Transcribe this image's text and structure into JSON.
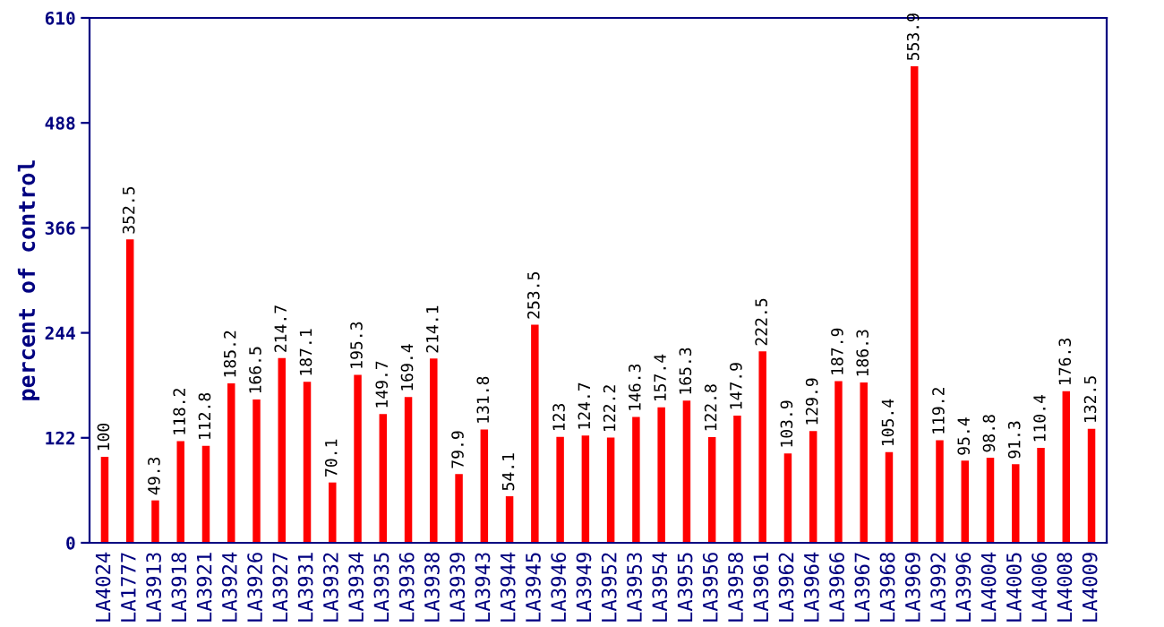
{
  "chart_data": {
    "type": "bar",
    "ylabel": "percent of control",
    "categories": [
      "LA4024",
      "LA1777",
      "LA3913",
      "LA3918",
      "LA3921",
      "LA3924",
      "LA3926",
      "LA3927",
      "LA3931",
      "LA3932",
      "LA3934",
      "LA3935",
      "LA3936",
      "LA3938",
      "LA3939",
      "LA3943",
      "LA3944",
      "LA3945",
      "LA3946",
      "LA3949",
      "LA3952",
      "LA3953",
      "LA3954",
      "LA3955",
      "LA3956",
      "LA3958",
      "LA3961",
      "LA3962",
      "LA3964",
      "LA3966",
      "LA3967",
      "LA3968",
      "LA3969",
      "LA3992",
      "LA3996",
      "LA4004",
      "LA4005",
      "LA4006",
      "LA4008",
      "LA4009"
    ],
    "values": [
      100,
      352.5,
      49.3,
      118.2,
      112.8,
      185.2,
      166.5,
      214.7,
      187.1,
      70.1,
      195.3,
      149.7,
      169.4,
      214.1,
      79.9,
      131.8,
      54.1,
      253.5,
      123,
      124.7,
      122.2,
      146.3,
      157.4,
      165.3,
      122.8,
      147.9,
      222.5,
      103.9,
      129.9,
      187.9,
      186.3,
      105.4,
      553.9,
      119.2,
      95.4,
      98.8,
      91.3,
      110.4,
      176.3,
      132.5
    ],
    "color": "#ff0000",
    "ylim": [
      0,
      610
    ],
    "yticks": [
      0,
      122,
      244,
      366,
      488,
      610
    ],
    "grid": false,
    "data_labels": true
  }
}
